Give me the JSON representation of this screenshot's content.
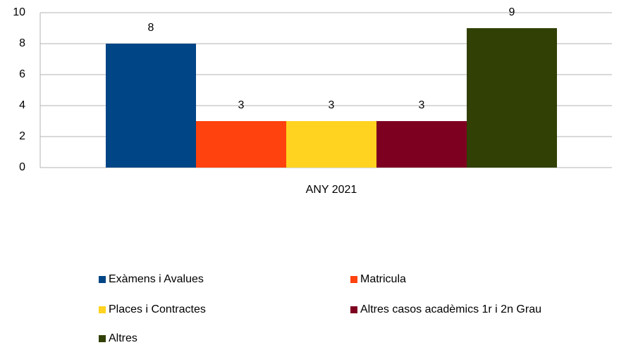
{
  "chart_data": {
    "type": "bar",
    "categories": [
      "ANY 2021"
    ],
    "series": [
      {
        "name": "Exàmens i Avalues",
        "color": "#004586",
        "values": [
          8
        ]
      },
      {
        "name": "Matricula",
        "color": "#ff420e",
        "values": [
          3
        ]
      },
      {
        "name": "Places i Contractes",
        "color": "#ffd320",
        "values": [
          3
        ]
      },
      {
        "name": "Altres casos acadèmics 1r i 2n Grau",
        "color": "#7e0021",
        "values": [
          3
        ]
      },
      {
        "name": "Altres",
        "color": "#314004",
        "values": [
          9
        ]
      }
    ],
    "ylim": [
      0,
      10
    ],
    "yticks": [
      0,
      2,
      4,
      6,
      8,
      10
    ],
    "grid": true,
    "legend": "bottom"
  }
}
